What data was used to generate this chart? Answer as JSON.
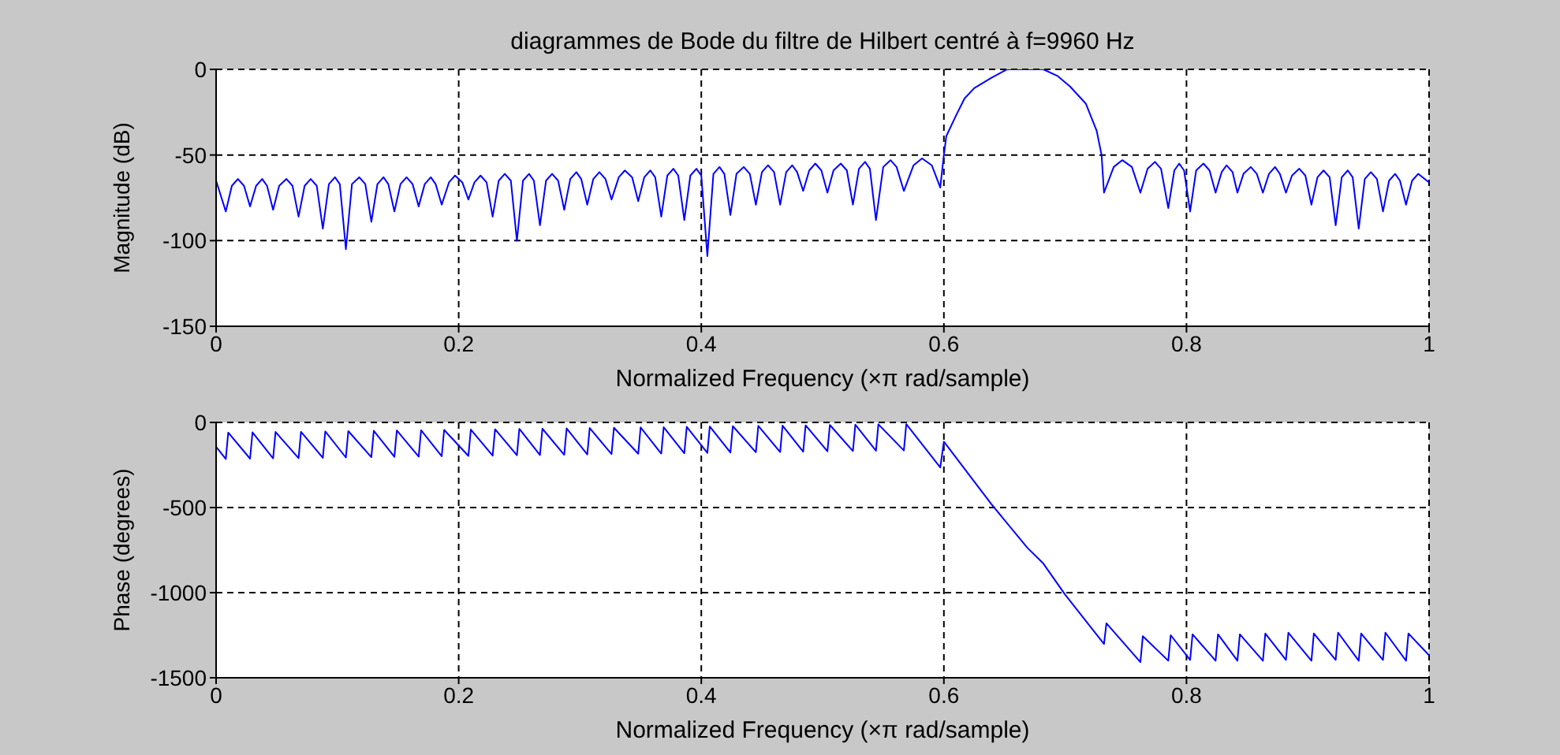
{
  "chart_data": [
    {
      "type": "line",
      "title": "diagrammes de Bode du filtre de Hilbert centré à f=9960 Hz",
      "xlabel": "Normalized Frequency  (×π rad/sample)",
      "ylabel": "Magnitude (dB)",
      "xlim": [
        0,
        1
      ],
      "xticks": [
        0,
        0.2,
        0.4,
        0.6,
        0.8,
        1
      ],
      "ylim": [
        -150,
        0
      ],
      "yticks": [
        -150,
        -100,
        -50,
        0
      ],
      "grid": true,
      "series": [
        {
          "color": "#0000ff",
          "x": [
            0,
            0.008,
            0.013,
            0.018,
            0.023,
            0.028,
            0.033,
            0.038,
            0.042,
            0.047,
            0.052,
            0.058,
            0.063,
            0.068,
            0.073,
            0.078,
            0.083,
            0.088,
            0.093,
            0.098,
            0.102,
            0.107,
            0.112,
            0.118,
            0.123,
            0.128,
            0.133,
            0.138,
            0.142,
            0.147,
            0.152,
            0.157,
            0.162,
            0.167,
            0.172,
            0.177,
            0.181,
            0.186,
            0.192,
            0.197,
            0.203,
            0.208,
            0.213,
            0.218,
            0.223,
            0.228,
            0.233,
            0.238,
            0.243,
            0.248,
            0.253,
            0.258,
            0.262,
            0.267,
            0.272,
            0.277,
            0.282,
            0.287,
            0.292,
            0.297,
            0.301,
            0.306,
            0.311,
            0.316,
            0.321,
            0.326,
            0.332,
            0.337,
            0.343,
            0.348,
            0.353,
            0.358,
            0.362,
            0.367,
            0.372,
            0.377,
            0.381,
            0.386,
            0.391,
            0.396,
            0.4,
            0.405,
            0.41,
            0.415,
            0.419,
            0.424,
            0.429,
            0.435,
            0.44,
            0.445,
            0.45,
            0.455,
            0.46,
            0.465,
            0.47,
            0.475,
            0.479,
            0.484,
            0.489,
            0.494,
            0.499,
            0.504,
            0.509,
            0.515,
            0.52,
            0.525,
            0.53,
            0.535,
            0.539,
            0.544,
            0.55,
            0.556,
            0.561,
            0.567,
            0.575,
            0.582,
            0.59,
            0.597,
            0.6,
            0.602,
            0.61,
            0.617,
            0.625,
            0.639,
            0.652,
            0.667,
            0.682,
            0.694,
            0.704,
            0.717,
            0.726,
            0.73,
            0.732,
            0.74,
            0.747,
            0.755,
            0.762,
            0.768,
            0.774,
            0.779,
            0.785,
            0.79,
            0.794,
            0.798,
            0.803,
            0.808,
            0.814,
            0.819,
            0.824,
            0.829,
            0.833,
            0.838,
            0.842,
            0.847,
            0.853,
            0.858,
            0.863,
            0.868,
            0.873,
            0.877,
            0.882,
            0.887,
            0.893,
            0.898,
            0.903,
            0.908,
            0.913,
            0.918,
            0.923,
            0.928,
            0.933,
            0.937,
            0.942,
            0.947,
            0.952,
            0.957,
            0.962,
            0.967,
            0.972,
            0.976,
            0.981,
            0.986,
            0.991,
            1
          ],
          "values": [
            -65,
            -83,
            -68,
            -64,
            -68,
            -80,
            -68,
            -64,
            -68,
            -82,
            -68,
            -64,
            -68,
            -86,
            -68,
            -64,
            -68,
            -93,
            -67,
            -63,
            -67,
            -105,
            -67,
            -63,
            -67,
            -89,
            -67,
            -63,
            -67,
            -83,
            -67,
            -63,
            -67,
            -80,
            -67,
            -63,
            -67,
            -79,
            -66,
            -62,
            -66,
            -76,
            -66,
            -62,
            -66,
            -86,
            -65,
            -61,
            -65,
            -100,
            -65,
            -61,
            -65,
            -91,
            -65,
            -61,
            -65,
            -82,
            -64,
            -60,
            -64,
            -79,
            -64,
            -60,
            -64,
            -76,
            -63,
            -59,
            -63,
            -77,
            -63,
            -59,
            -63,
            -86,
            -62,
            -58,
            -62,
            -88,
            -62,
            -58,
            -62,
            -109,
            -61,
            -57,
            -61,
            -85,
            -61,
            -57,
            -61,
            -79,
            -60,
            -56,
            -60,
            -79,
            -60,
            -56,
            -60,
            -71,
            -59,
            -55,
            -59,
            -72,
            -59,
            -55,
            -59,
            -79,
            -58,
            -54,
            -58,
            -88,
            -57,
            -53,
            -57,
            -71,
            -56,
            -52,
            -56,
            -69,
            -50,
            -39,
            -27,
            -17,
            -11,
            -5,
            0,
            0,
            0,
            -4,
            -10,
            -20,
            -36,
            -50,
            -72,
            -57,
            -53,
            -57,
            -72,
            -58,
            -54,
            -58,
            -81,
            -59,
            -55,
            -59,
            -83,
            -59,
            -55,
            -59,
            -72,
            -60,
            -56,
            -60,
            -72,
            -61,
            -57,
            -61,
            -72,
            -61,
            -57,
            -61,
            -72,
            -62,
            -58,
            -62,
            -79,
            -63,
            -59,
            -63,
            -91,
            -63,
            -59,
            -63,
            -93,
            -64,
            -60,
            -64,
            -83,
            -65,
            -61,
            -65,
            -79,
            -65,
            -61,
            -66
          ]
        }
      ]
    },
    {
      "type": "line",
      "xlabel": "Normalized Frequency  (×π rad/sample)",
      "ylabel": "Phase (degrees)",
      "xlim": [
        0,
        1
      ],
      "xticks": [
        0,
        0.2,
        0.4,
        0.6,
        0.8,
        1
      ],
      "ylim": [
        -1500,
        0
      ],
      "yticks": [
        -1500,
        -1000,
        -500,
        0
      ],
      "grid": true,
      "series": [
        {
          "color": "#0000ff",
          "x": [
            0,
            0.008,
            0.01,
            0.028,
            0.03,
            0.047,
            0.049,
            0.068,
            0.07,
            0.088,
            0.09,
            0.107,
            0.109,
            0.128,
            0.13,
            0.147,
            0.149,
            0.167,
            0.169,
            0.186,
            0.188,
            0.208,
            0.21,
            0.228,
            0.23,
            0.248,
            0.25,
            0.267,
            0.269,
            0.287,
            0.289,
            0.306,
            0.308,
            0.326,
            0.328,
            0.348,
            0.35,
            0.367,
            0.369,
            0.386,
            0.388,
            0.405,
            0.407,
            0.424,
            0.426,
            0.445,
            0.447,
            0.465,
            0.467,
            0.484,
            0.486,
            0.504,
            0.506,
            0.525,
            0.527,
            0.544,
            0.546,
            0.567,
            0.569,
            0.597,
            0.6,
            0.639,
            0.669,
            0.682,
            0.7,
            0.732,
            0.734,
            0.762,
            0.764,
            0.785,
            0.787,
            0.803,
            0.805,
            0.824,
            0.826,
            0.842,
            0.844,
            0.863,
            0.865,
            0.882,
            0.884,
            0.903,
            0.905,
            0.923,
            0.925,
            0.942,
            0.944,
            0.962,
            0.964,
            0.981,
            0.983,
            1
          ],
          "values": [
            -143,
            -215,
            -60,
            -213,
            -58,
            -211,
            -56,
            -210,
            -55,
            -208,
            -53,
            -206,
            -51,
            -204,
            -49,
            -202,
            -47,
            -201,
            -46,
            -199,
            -44,
            -197,
            -42,
            -195,
            -40,
            -193,
            -38,
            -192,
            -37,
            -190,
            -35,
            -188,
            -33,
            -186,
            -31,
            -184,
            -29,
            -183,
            -28,
            -181,
            -26,
            -179,
            -24,
            -177,
            -22,
            -175,
            -20,
            -174,
            -19,
            -172,
            -17,
            -170,
            -15,
            -168,
            -13,
            -166,
            -11,
            -165,
            -10,
            -265,
            -113,
            -479,
            -738,
            -829,
            -1012,
            -1302,
            -1180,
            -1408,
            -1256,
            -1400,
            -1250,
            -1395,
            -1245,
            -1400,
            -1245,
            -1400,
            -1245,
            -1400,
            -1240,
            -1395,
            -1235,
            -1400,
            -1240,
            -1395,
            -1235,
            -1400,
            -1240,
            -1395,
            -1235,
            -1400,
            -1240,
            -1368
          ]
        }
      ]
    }
  ]
}
